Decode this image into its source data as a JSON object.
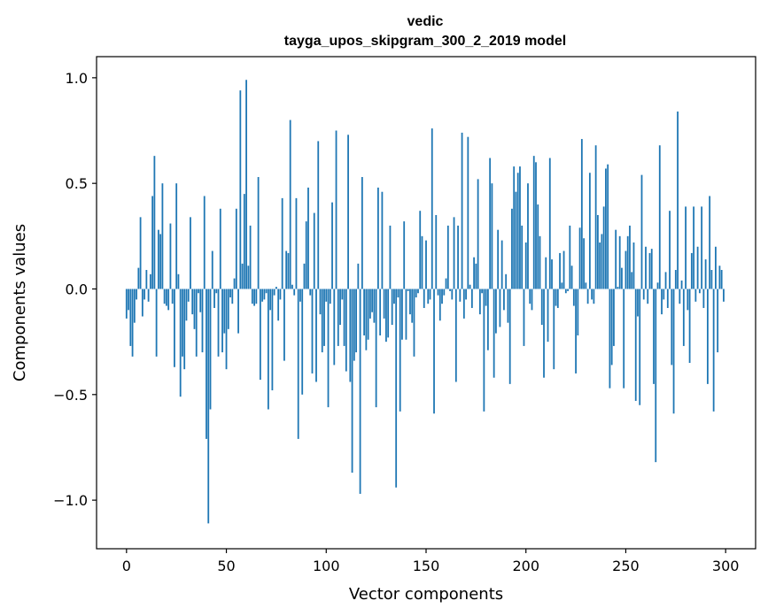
{
  "chart_data": {
    "type": "bar",
    "title_line1": "vedic",
    "title_line2": "tayga_upos_skipgram_300_2_2019 model",
    "xlabel": "Vector components",
    "ylabel": "Components values",
    "xlim": [
      -15,
      315
    ],
    "ylim": [
      -1.23,
      1.1
    ],
    "xticks": [
      0,
      50,
      100,
      150,
      200,
      250,
      300
    ],
    "xtick_labels": [
      "0",
      "50",
      "100",
      "150",
      "200",
      "250",
      "300"
    ],
    "yticks": [
      -1.0,
      -0.5,
      0.0,
      0.5,
      1.0
    ],
    "ytick_labels": [
      "−1.0",
      "−0.5",
      "0.0",
      "0.5",
      "1.0"
    ],
    "bar_color": "#1f77b4",
    "values": [
      -0.14,
      -0.1,
      -0.27,
      -0.32,
      -0.16,
      -0.05,
      0.1,
      0.34,
      -0.13,
      -0.05,
      0.09,
      -0.06,
      0.07,
      0.44,
      0.63,
      -0.32,
      0.28,
      0.26,
      0.5,
      -0.07,
      -0.08,
      -0.1,
      0.31,
      -0.07,
      -0.37,
      0.5,
      0.07,
      -0.51,
      -0.32,
      -0.38,
      -0.15,
      -0.06,
      0.34,
      -0.12,
      -0.19,
      -0.32,
      -0.02,
      -0.11,
      -0.3,
      0.44,
      -0.71,
      -1.11,
      -0.57,
      0.18,
      -0.09,
      -0.02,
      -0.32,
      0.38,
      -0.3,
      -0.21,
      -0.38,
      -0.19,
      -0.04,
      -0.07,
      0.05,
      0.38,
      -0.21,
      0.94,
      0.12,
      0.45,
      0.99,
      0.11,
      0.3,
      -0.07,
      -0.08,
      -0.07,
      0.53,
      -0.43,
      -0.06,
      -0.05,
      -0.02,
      -0.57,
      -0.1,
      -0.48,
      -0.03,
      0.01,
      -0.15,
      -0.05,
      0.43,
      -0.34,
      0.18,
      0.17,
      0.8,
      0.02,
      -0.03,
      0.43,
      -0.71,
      -0.06,
      -0.5,
      0.12,
      0.32,
      0.48,
      -0.03,
      -0.4,
      0.36,
      -0.44,
      0.7,
      -0.12,
      -0.3,
      -0.27,
      -0.06,
      -0.56,
      -0.07,
      0.41,
      -0.36,
      0.75,
      -0.27,
      -0.17,
      -0.05,
      -0.27,
      -0.39,
      0.73,
      -0.44,
      -0.87,
      -0.34,
      -0.3,
      0.12,
      -0.97,
      0.53,
      -0.22,
      -0.29,
      -0.24,
      -0.14,
      -0.11,
      -0.16,
      -0.56,
      0.48,
      -0.22,
      0.46,
      -0.14,
      -0.25,
      -0.23,
      0.3,
      -0.17,
      -0.07,
      -0.94,
      -0.04,
      -0.58,
      -0.24,
      0.32,
      -0.24,
      -0.01,
      -0.12,
      -0.16,
      -0.32,
      -0.04,
      -0.02,
      0.37,
      0.25,
      -0.09,
      0.23,
      -0.07,
      -0.05,
      0.76,
      -0.59,
      0.35,
      -0.03,
      -0.15,
      -0.07,
      -0.03,
      0.05,
      0.3,
      -0.01,
      -0.05,
      0.34,
      -0.44,
      0.3,
      -0.06,
      0.74,
      -0.14,
      -0.05,
      0.72,
      0.02,
      -0.09,
      0.15,
      0.12,
      0.52,
      -0.12,
      -0.02,
      -0.58,
      -0.08,
      -0.29,
      0.62,
      0.5,
      -0.42,
      -0.21,
      0.28,
      -0.18,
      0.23,
      -0.1,
      0.07,
      -0.16,
      -0.45,
      0.38,
      0.58,
      0.46,
      0.55,
      0.58,
      0.3,
      -0.27,
      0.22,
      0.5,
      -0.07,
      -0.1,
      0.63,
      0.6,
      0.4,
      0.25,
      -0.17,
      -0.42,
      0.15,
      -0.25,
      0.62,
      0.14,
      -0.38,
      -0.08,
      -0.09,
      0.17,
      0.03,
      0.18,
      -0.02,
      -0.01,
      0.3,
      0.11,
      -0.08,
      -0.4,
      -0.22,
      0.29,
      0.71,
      0.24,
      0.03,
      -0.07,
      0.55,
      -0.05,
      -0.07,
      0.68,
      0.35,
      0.22,
      0.26,
      0.39,
      0.57,
      0.59,
      -0.47,
      -0.36,
      -0.27,
      0.28,
      0.01,
      0.25,
      0.1,
      -0.47,
      0.18,
      0.25,
      0.3,
      0.08,
      0.22,
      -0.53,
      -0.13,
      -0.55,
      0.54,
      -0.05,
      0.2,
      -0.07,
      0.17,
      0.19,
      -0.45,
      -0.82,
      0.03,
      0.68,
      -0.12,
      -0.05,
      0.08,
      -0.09,
      0.37,
      -0.36,
      -0.59,
      0.09,
      0.84,
      -0.07,
      0.04,
      -0.27,
      0.39,
      -0.1,
      -0.35,
      0.17,
      0.39,
      -0.06,
      0.2,
      -0.02,
      0.39,
      -0.09,
      0.14,
      -0.45,
      0.44,
      0.09,
      -0.58,
      0.2,
      -0.3,
      0.11,
      0.09,
      -0.06
    ]
  }
}
